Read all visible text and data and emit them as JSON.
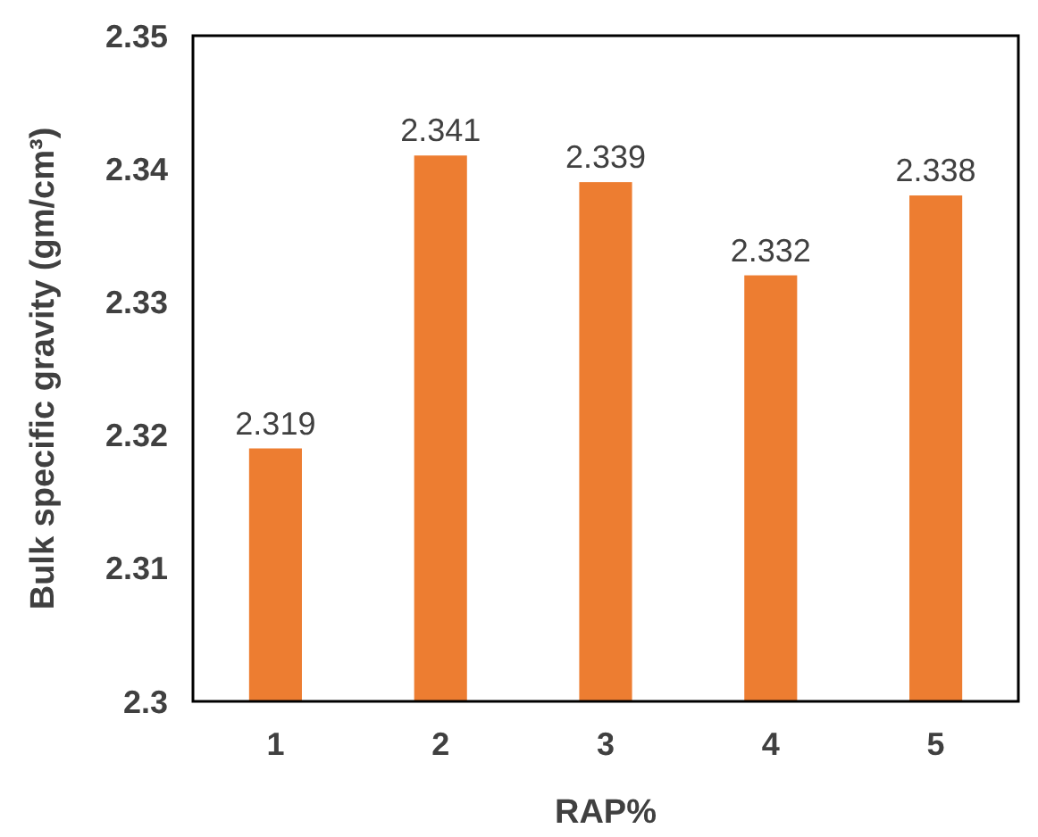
{
  "chart_data": {
    "type": "bar",
    "xlabel": "RAP%",
    "ylabel": "Bulk specific gravity (gm/cm³)",
    "categories": [
      "1",
      "2",
      "3",
      "4",
      "5"
    ],
    "values": [
      2.319,
      2.341,
      2.339,
      2.332,
      2.338
    ],
    "color": "#ed7d31",
    "ylim": [
      2.3,
      2.35
    ],
    "yticks": [
      2.3,
      2.31,
      2.32,
      2.33,
      2.34,
      2.35
    ],
    "grid": false,
    "data_labels": true
  }
}
